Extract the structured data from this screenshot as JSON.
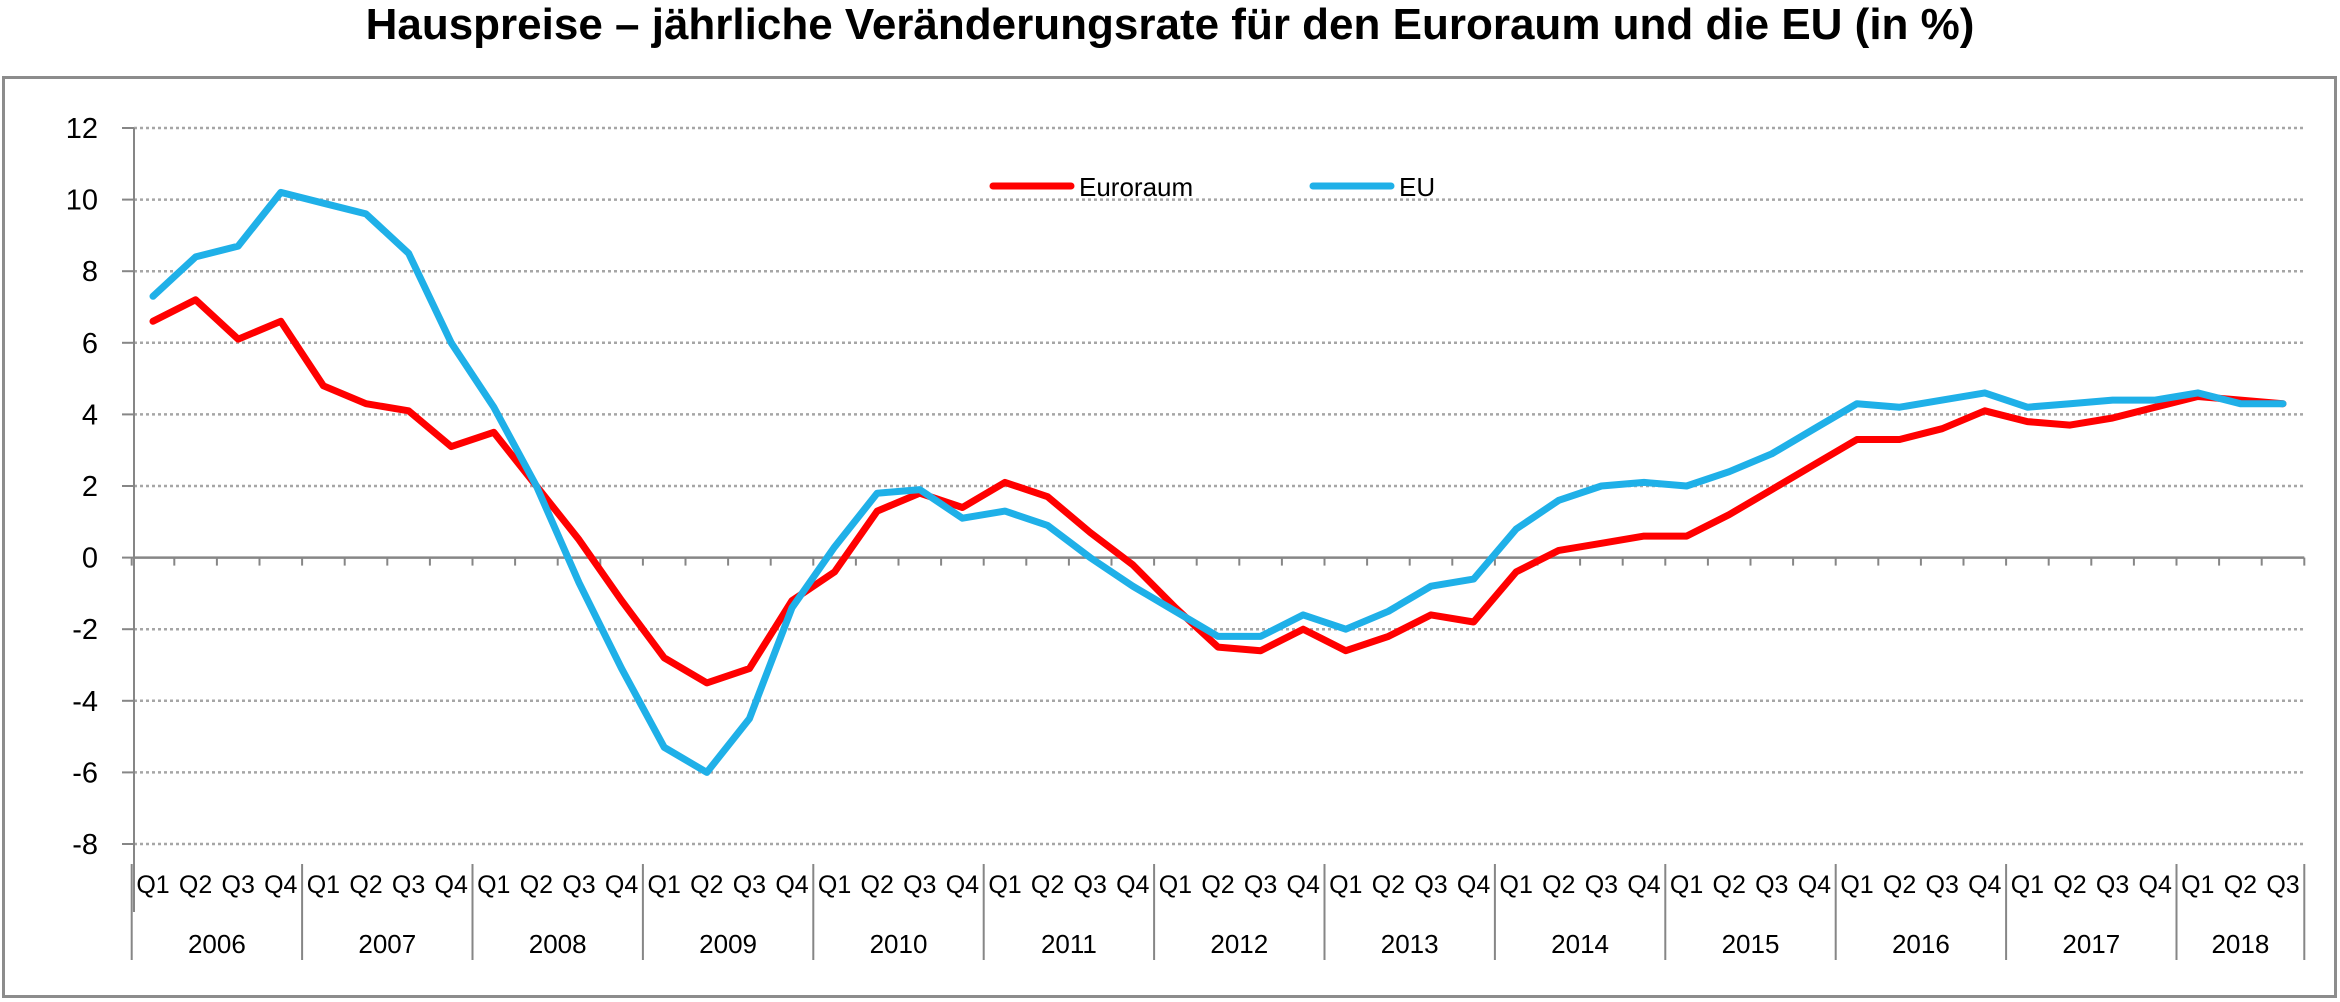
{
  "chart_data": {
    "type": "line",
    "title": "Hauspreise – jährliche Veränderungsrate für den Euroraum und die EU (in %)",
    "xlabel": "",
    "ylabel": "",
    "ylim": [
      -8,
      12
    ],
    "yticks": [
      "12",
      "10",
      "8",
      "6",
      "4",
      "2",
      "0",
      "-2",
      "-4",
      "-6",
      "-8"
    ],
    "grid": true,
    "legend_position": "top-center",
    "quarters": [
      "Q1",
      "Q2",
      "Q3",
      "Q4",
      "Q1",
      "Q2",
      "Q3",
      "Q4",
      "Q1",
      "Q2",
      "Q3",
      "Q4",
      "Q1",
      "Q2",
      "Q3",
      "Q4",
      "Q1",
      "Q2",
      "Q3",
      "Q4",
      "Q1",
      "Q2",
      "Q3",
      "Q4",
      "Q1",
      "Q2",
      "Q3",
      "Q4",
      "Q1",
      "Q2",
      "Q3",
      "Q4",
      "Q1",
      "Q2",
      "Q3",
      "Q4",
      "Q1",
      "Q2",
      "Q3",
      "Q4",
      "Q1",
      "Q2",
      "Q3",
      "Q4",
      "Q1",
      "Q2",
      "Q3",
      "Q4",
      "Q1",
      "Q2",
      "Q3"
    ],
    "years": [
      "2006",
      "2007",
      "2008",
      "2009",
      "2010",
      "2011",
      "2012",
      "2013",
      "2014",
      "2015",
      "2016",
      "2017",
      "2018"
    ],
    "series": [
      {
        "name": "Euroraum",
        "color": "#ff0000",
        "values": [
          6.6,
          7.2,
          6.1,
          6.6,
          4.8,
          4.3,
          4.1,
          3.1,
          3.5,
          2.0,
          0.5,
          -1.2,
          -2.8,
          -3.5,
          -3.1,
          -1.2,
          -0.4,
          1.3,
          1.8,
          1.4,
          2.1,
          1.7,
          0.7,
          -0.2,
          -1.4,
          -2.5,
          -2.6,
          -2.0,
          -2.6,
          -2.2,
          -1.6,
          -1.8,
          -0.4,
          0.2,
          0.4,
          0.6,
          0.6,
          1.2,
          1.9,
          2.6,
          3.3,
          3.3,
          3.6,
          4.1,
          3.8,
          3.7,
          3.9,
          4.2,
          4.5,
          4.4,
          4.3
        ]
      },
      {
        "name": "EU",
        "color": "#1fb0e8",
        "values": [
          7.3,
          8.4,
          8.7,
          10.2,
          9.9,
          9.6,
          8.5,
          6.0,
          4.2,
          2.0,
          -0.7,
          -3.1,
          -5.3,
          -6.0,
          -4.5,
          -1.4,
          0.3,
          1.8,
          1.9,
          1.1,
          1.3,
          0.9,
          0.0,
          -0.8,
          -1.5,
          -2.2,
          -2.2,
          -1.6,
          -2.0,
          -1.5,
          -0.8,
          -0.6,
          0.8,
          1.6,
          2.0,
          2.1,
          2.0,
          2.4,
          2.9,
          3.6,
          4.3,
          4.2,
          4.4,
          4.6,
          4.2,
          4.3,
          4.4,
          4.4,
          4.6,
          4.3,
          4.3
        ]
      }
    ]
  }
}
